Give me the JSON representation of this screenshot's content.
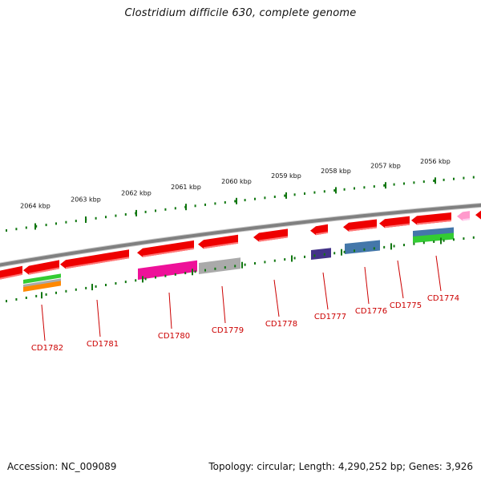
{
  "title": "Clostridium difficile 630, complete genome",
  "footer": {
    "accession": "Accession: NC_009089",
    "summary": "Topology: circular; Length: 4,290,252 bp; Genes: 3,926"
  },
  "scale_labels": [
    "2064 kbp",
    "2063 kbp",
    "2062 kbp",
    "2061 kbp",
    "2060 kbp",
    "2059 kbp",
    "2058 kbp",
    "2057 kbp",
    "2056 kbp"
  ],
  "gene_labels": [
    "CD1782",
    "CD1781",
    "CD1780",
    "CD1779",
    "CD1778",
    "CD1777",
    "CD1776",
    "CD1775",
    "CD1774"
  ],
  "colors": {
    "gene_red": "#ee0000",
    "gene_red_light": "#ff7777",
    "backbone": "#808080",
    "tick_green": "#117711",
    "label_red": "#cc0000",
    "magenta": "#ee1199",
    "gray": "#aaaaaa",
    "navy": "#443388",
    "steel_blue": "#4477aa",
    "green": "#33cc33",
    "orange": "#ff8800",
    "pink": "#ff99cc"
  }
}
